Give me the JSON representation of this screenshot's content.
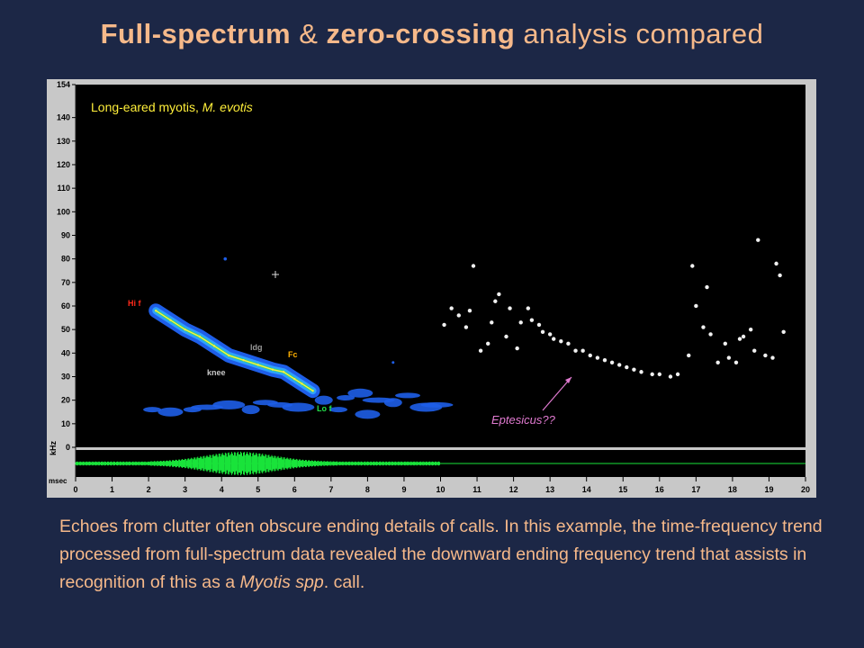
{
  "title": {
    "part1": "Full-spectrum",
    "amp": " & ",
    "part2": "zero-crossing",
    "part3": " analysis compared"
  },
  "caption": {
    "text_a": "Echoes from clutter often obscure ending details of calls. In this example, the time-frequency trend processed from full-spectrum data revealed the downward ending frequency trend that assists in recognition of this as a ",
    "italic": "Myotis spp",
    "text_b": ". call."
  },
  "chart_data": {
    "type": "scatter",
    "species_label": {
      "normal": "Long-eared myotis, ",
      "italic": "M. evotis"
    },
    "ylabel": "kHz",
    "xlabel": "msec",
    "xlim": [
      0,
      20
    ],
    "ylim": [
      0,
      154
    ],
    "x_ticks": [
      0,
      1,
      2,
      3,
      4,
      5,
      6,
      7,
      8,
      9,
      10,
      11,
      12,
      13,
      14,
      15,
      16,
      17,
      18,
      19,
      20
    ],
    "y_ticks": [
      0,
      10,
      20,
      30,
      40,
      50,
      60,
      70,
      80,
      90,
      100,
      110,
      120,
      130,
      140,
      154
    ],
    "annotations": {
      "hi_f": "Hi f",
      "fc": "Fc",
      "ldg": "ldg",
      "knee": "knee",
      "lo_f": "Lo f",
      "eptesicus": "Eptesicus??"
    },
    "colors": {
      "hi_f": "#ff2a1a",
      "fc": "#ffb000",
      "lo_f": "#23e04a",
      "eptesicus": "#e07ad0",
      "trend": "#ffe84a",
      "spectrum": "#1e6cff",
      "waveform": "#19e33a"
    },
    "call_trend": {
      "name": "M. evotis call",
      "points": [
        [
          2.2,
          58
        ],
        [
          2.6,
          54
        ],
        [
          3.0,
          50
        ],
        [
          3.4,
          47
        ],
        [
          3.8,
          43
        ],
        [
          4.2,
          39
        ],
        [
          4.6,
          37
        ],
        [
          5.0,
          35
        ],
        [
          5.4,
          33
        ],
        [
          5.7,
          32
        ],
        [
          6.0,
          29
        ],
        [
          6.2,
          27
        ],
        [
          6.5,
          24
        ]
      ]
    },
    "zero_crossing_points": {
      "points": [
        [
          10.1,
          52
        ],
        [
          10.3,
          59
        ],
        [
          10.5,
          56
        ],
        [
          10.7,
          51
        ],
        [
          10.8,
          58
        ],
        [
          10.9,
          77
        ],
        [
          11.1,
          41
        ],
        [
          11.3,
          44
        ],
        [
          11.4,
          53
        ],
        [
          11.5,
          62
        ],
        [
          11.6,
          65
        ],
        [
          11.8,
          47
        ],
        [
          11.9,
          59
        ],
        [
          12.1,
          42
        ],
        [
          12.2,
          53
        ],
        [
          12.4,
          59
        ],
        [
          12.5,
          54
        ],
        [
          12.7,
          52
        ],
        [
          12.8,
          49
        ],
        [
          13.0,
          48
        ],
        [
          13.1,
          46
        ],
        [
          13.3,
          45
        ],
        [
          13.5,
          44
        ],
        [
          13.7,
          41
        ],
        [
          13.9,
          41
        ],
        [
          14.1,
          39
        ],
        [
          14.3,
          38
        ],
        [
          14.5,
          37
        ],
        [
          14.7,
          36
        ],
        [
          14.9,
          35
        ],
        [
          15.1,
          34
        ],
        [
          15.3,
          33
        ],
        [
          15.5,
          32
        ],
        [
          15.8,
          31
        ],
        [
          16.0,
          31
        ],
        [
          16.3,
          30
        ],
        [
          16.5,
          31
        ],
        [
          16.8,
          39
        ],
        [
          16.9,
          77
        ],
        [
          17.0,
          60
        ],
        [
          17.2,
          51
        ],
        [
          17.3,
          68
        ],
        [
          17.4,
          48
        ],
        [
          17.6,
          36
        ],
        [
          17.8,
          44
        ],
        [
          17.9,
          38
        ],
        [
          18.1,
          36
        ],
        [
          18.2,
          46
        ],
        [
          18.3,
          47
        ],
        [
          18.5,
          50
        ],
        [
          18.6,
          41
        ],
        [
          18.7,
          88
        ],
        [
          18.9,
          39
        ],
        [
          19.1,
          38
        ],
        [
          19.2,
          78
        ],
        [
          19.3,
          73
        ],
        [
          19.4,
          49
        ]
      ]
    },
    "waveform_extent_msec": [
      0,
      10
    ]
  }
}
